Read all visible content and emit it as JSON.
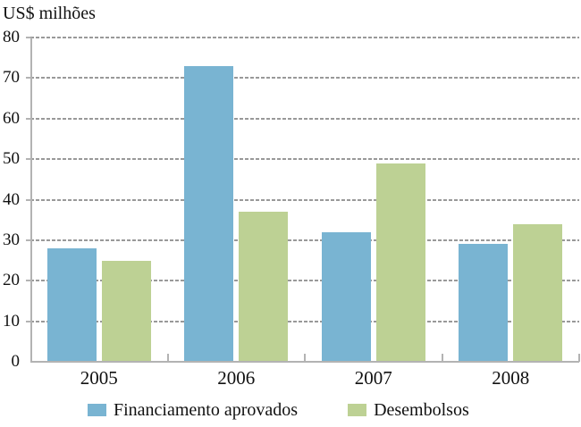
{
  "chart_data": {
    "type": "bar",
    "title": "",
    "ylabel": "US$ milhões",
    "xlabel": "",
    "categories": [
      "2005",
      "2006",
      "2007",
      "2008"
    ],
    "series": [
      {
        "name": "Financiamento aprovados",
        "color": "#79b4d2",
        "values": [
          28,
          73,
          32,
          29
        ]
      },
      {
        "name": "Desembolsos",
        "color": "#bdd194",
        "values": [
          25,
          37,
          49,
          34
        ]
      }
    ],
    "ylim": [
      0,
      80
    ],
    "yticks": [
      0,
      10,
      20,
      30,
      40,
      50,
      60,
      70,
      80
    ],
    "grid": "horizontal-dashed",
    "legend_position": "bottom",
    "colors": {
      "axis": "#b3b3b3",
      "gridline": "#999999",
      "text": "#111111",
      "background": "#ffffff"
    }
  }
}
